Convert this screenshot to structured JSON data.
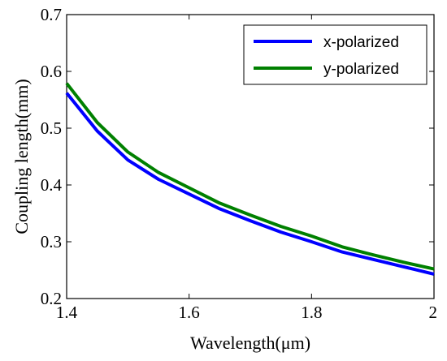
{
  "chart_data": {
    "type": "line",
    "title": "",
    "xlabel": "Wavelength(μm)",
    "ylabel": "Coupling length(mm)",
    "xlim": [
      1.4,
      2.0
    ],
    "ylim": [
      0.2,
      0.7
    ],
    "x_ticks": [
      1.4,
      1.6,
      1.8,
      2.0
    ],
    "x_tick_labels": [
      "1.4",
      "1.6",
      "1.8",
      "2"
    ],
    "y_ticks": [
      0.2,
      0.3,
      0.4,
      0.5,
      0.6,
      0.7
    ],
    "y_tick_labels": [
      "0.2",
      "0.3",
      "0.4",
      "0.5",
      "0.6",
      "0.7"
    ],
    "grid": false,
    "legend_position": "top-right",
    "x": [
      1.4,
      1.45,
      1.5,
      1.55,
      1.6,
      1.65,
      1.7,
      1.75,
      1.8,
      1.85,
      1.9,
      1.95,
      2.0
    ],
    "series": [
      {
        "name": "x-polarized",
        "color": "#0000ff",
        "values": [
          0.562,
          0.495,
          0.444,
          0.41,
          0.384,
          0.358,
          0.337,
          0.317,
          0.3,
          0.282,
          0.269,
          0.256,
          0.243
        ]
      },
      {
        "name": "y-polarized",
        "color": "#008000",
        "values": [
          0.579,
          0.51,
          0.458,
          0.422,
          0.395,
          0.368,
          0.347,
          0.327,
          0.31,
          0.291,
          0.277,
          0.264,
          0.252
        ]
      }
    ]
  }
}
